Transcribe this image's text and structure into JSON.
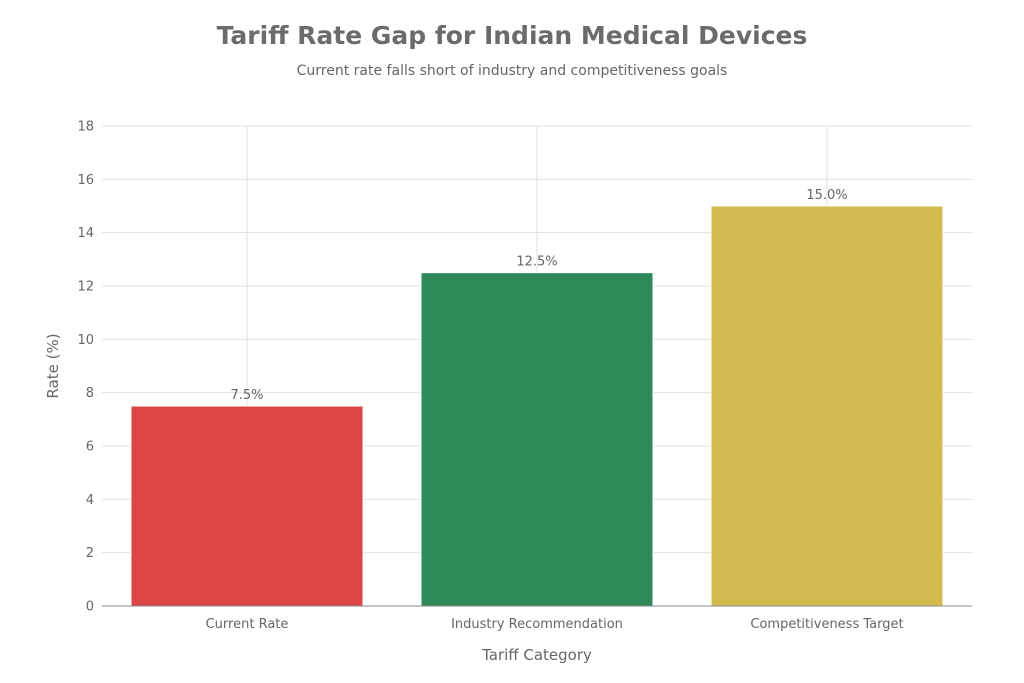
{
  "chart_data": {
    "type": "bar",
    "title": "Tariff Rate Gap for Indian Medical Devices",
    "subtitle": "Current rate falls short of industry and competitiveness goals",
    "xlabel": "Tariff Category",
    "ylabel": "Rate (%)",
    "categories": [
      "Current Rate",
      "Industry Recommendation",
      "Competitiveness Target"
    ],
    "values": [
      7.5,
      12.5,
      15.0
    ],
    "data_labels": [
      "7.5%",
      "12.5%",
      "15.0%"
    ],
    "colors": [
      "#dc4545",
      "#2e8a58",
      "#d3b94e"
    ],
    "ylim": [
      0,
      18
    ],
    "yticks": [
      0,
      2,
      4,
      6,
      8,
      10,
      12,
      14,
      16,
      18
    ],
    "grid": true,
    "legend": "none"
  }
}
